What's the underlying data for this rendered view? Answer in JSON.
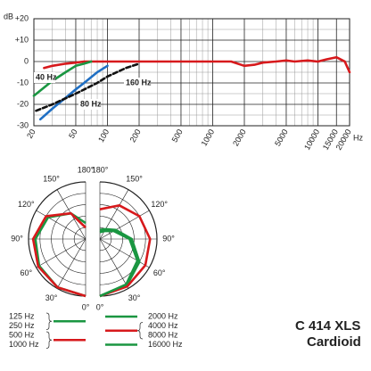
{
  "chart_data": [
    {
      "type": "line",
      "x_label": "Hz",
      "y_label": "dB",
      "log_x": true,
      "grid": true,
      "xlim": [
        20,
        20000
      ],
      "ylim": [
        -30,
        20
      ],
      "xticks": [
        20,
        50,
        100,
        200,
        500,
        1000,
        2000,
        5000,
        10000,
        15000,
        20000
      ],
      "xminorticks": [
        30,
        40,
        60,
        70,
        80,
        90,
        300,
        400,
        600,
        700,
        800,
        900,
        3000,
        4000,
        6000,
        7000,
        8000,
        9000
      ],
      "yticks": [
        {
          "value": 20,
          "label": "+20"
        },
        {
          "value": 10,
          "label": "+10"
        },
        0,
        -10,
        -20,
        -30
      ],
      "yminorticks": [
        15,
        5,
        -5,
        -15,
        -25
      ],
      "series": [
        {
          "color": "#d7191c",
          "dash": false,
          "x": [
            25,
            30,
            40,
            50,
            60,
            80,
            100,
            200,
            500,
            1000,
            1500,
            2000,
            2500,
            3000,
            4000,
            5000,
            6000,
            8000,
            10000,
            12000,
            15000,
            18000,
            20000
          ],
          "values": [
            -3,
            -2,
            -1,
            -0.5,
            0,
            0,
            0,
            0,
            0,
            0,
            0,
            -2,
            -1.5,
            -0.5,
            0,
            0.5,
            0,
            0.5,
            0,
            1,
            2,
            0,
            -5
          ]
        },
        {
          "color": "#1a9641",
          "dash": false,
          "x": [
            20,
            30,
            40,
            50,
            60,
            70
          ],
          "values": [
            -16,
            -9,
            -5,
            -2,
            -1,
            0
          ]
        },
        {
          "color": "#1f6fc4",
          "dash": false,
          "x": [
            23,
            30,
            40,
            50,
            60,
            80,
            100
          ],
          "values": [
            -27,
            -22,
            -17,
            -13,
            -10,
            -5,
            -2
          ]
        },
        {
          "color": "#111111",
          "dash": true,
          "x": [
            21,
            30,
            50,
            80,
            100,
            150,
            200
          ],
          "values": [
            -23,
            -20,
            -15,
            -10,
            -7,
            -3,
            -1
          ]
        }
      ],
      "annotations": [
        "40 Hz",
        "80 Hz",
        "160 Hz"
      ]
    },
    {
      "type": "polar",
      "rlim": [
        -25,
        0
      ],
      "rticks": [
        -20,
        -15,
        -10,
        -5,
        0
      ],
      "thetaticks": [
        {
          "value": 0,
          "label": "0°"
        },
        {
          "value": 30,
          "label": "30°"
        },
        {
          "value": 60,
          "label": "60°"
        },
        {
          "value": 90,
          "label": "90°"
        },
        {
          "value": 120,
          "label": "120°"
        },
        {
          "value": 150,
          "label": "150°"
        },
        {
          "value": 180,
          "label": "180°"
        }
      ],
      "angles": [
        0,
        30,
        60,
        90,
        120,
        150,
        180
      ],
      "series": [
        {
          "side": "left",
          "labels": [
            "125 Hz",
            "250 Hz"
          ],
          "color": "#1a9641",
          "values": [
            0,
            -0.5,
            -1.5,
            -3,
            -6,
            -12,
            -18
          ]
        },
        {
          "side": "left",
          "labels": [
            "500 Hz",
            "1000 Hz"
          ],
          "color": "#d7191c",
          "values": [
            0,
            -0.5,
            -1,
            -2,
            -5,
            -12,
            -20
          ]
        },
        {
          "side": "right",
          "labels": [
            "2000 Hz"
          ],
          "color": "#1a9641",
          "values": [
            0,
            -1.5,
            -5,
            -11,
            -17,
            -20,
            -21
          ]
        },
        {
          "side": "right",
          "labels": [
            "4000 Hz",
            "8000 Hz"
          ],
          "color": "#d7191c",
          "values": [
            0,
            -1,
            -2,
            -3,
            -5,
            -8,
            -12
          ]
        },
        {
          "side": "right",
          "labels": [
            "16000 Hz"
          ],
          "color": "#1a9641",
          "values": [
            0,
            -2,
            -6,
            -12,
            -18,
            -21,
            -22
          ]
        }
      ],
      "title": "C 414 XLS",
      "subtitle": "Cardioid"
    }
  ]
}
